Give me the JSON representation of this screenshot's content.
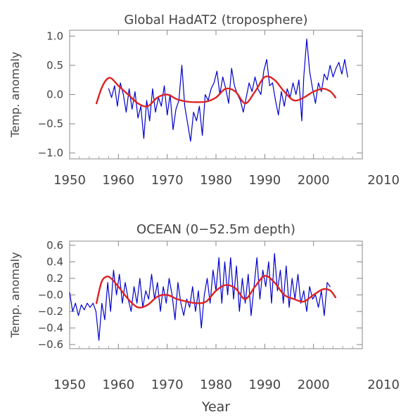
{
  "chart_data": [
    {
      "type": "line",
      "title": "Global HadAT2 (troposphere)",
      "ylabel": "Temp. anomaly",
      "xlabel": "",
      "xlim": [
        1950,
        2010
      ],
      "ylim": [
        -1.1,
        1.1
      ],
      "xticks": [
        1950,
        1960,
        1970,
        1980,
        1990,
        2000,
        2010
      ],
      "yticks": [
        -1.0,
        -0.5,
        0.0,
        0.5,
        1.0
      ],
      "ytick_labels": [
        "−1.0",
        "−0.5",
        "0.0",
        "0.5",
        "1.0"
      ],
      "series": [
        {
          "color": "#0000cc",
          "style": "noisy",
          "x": [
            1958,
            1958.6,
            1959.2,
            1959.8,
            1960.4,
            1961,
            1961.6,
            1962.2,
            1962.8,
            1963.4,
            1964,
            1964.6,
            1965.2,
            1965.8,
            1966.4,
            1967,
            1967.6,
            1968.2,
            1968.8,
            1969.4,
            1970,
            1970.6,
            1971.2,
            1971.8,
            1972.4,
            1973,
            1973.6,
            1974.2,
            1974.8,
            1975.4,
            1976,
            1976.6,
            1977.2,
            1977.8,
            1978.4,
            1979,
            1979.6,
            1980.2,
            1980.8,
            1981.4,
            1982,
            1982.6,
            1983.2,
            1983.8,
            1984.4,
            1985,
            1985.6,
            1986.2,
            1986.8,
            1987.4,
            1988,
            1988.6,
            1989.2,
            1989.8,
            1990.4,
            1991,
            1991.6,
            1992.2,
            1992.8,
            1993.4,
            1994,
            1994.6,
            1995.2,
            1995.8,
            1996.4,
            1997,
            1997.6,
            1998,
            1998.6,
            1999.2,
            1999.8,
            2000.4,
            2001,
            2001.6,
            2002.2,
            2002.8,
            2003.4,
            2004,
            2004.6,
            2005.2,
            2005.8,
            2006.4,
            2007
          ],
          "y": [
            0.1,
            -0.05,
            0.15,
            -0.2,
            0.2,
            0.0,
            -0.3,
            0.1,
            -0.25,
            0.05,
            -0.4,
            -0.2,
            -0.75,
            -0.1,
            -0.45,
            0.1,
            -0.3,
            -0.05,
            -0.2,
            0.15,
            -0.35,
            0.0,
            -0.6,
            -0.25,
            -0.1,
            0.5,
            -0.2,
            -0.5,
            -0.8,
            -0.3,
            -0.45,
            -0.2,
            -0.7,
            0.0,
            -0.1,
            0.1,
            0.2,
            0.4,
            0.0,
            0.3,
            0.1,
            -0.15,
            0.45,
            0.15,
            0.0,
            -0.1,
            -0.3,
            -0.05,
            0.2,
            0.05,
            0.3,
            0.1,
            0.0,
            0.4,
            0.6,
            0.15,
            0.2,
            -0.1,
            -0.35,
            0.05,
            -0.2,
            0.1,
            -0.05,
            0.2,
            0.0,
            0.25,
            -0.45,
            0.3,
            0.95,
            0.4,
            0.1,
            -0.15,
            0.2,
            0.05,
            0.35,
            0.25,
            0.5,
            0.3,
            0.45,
            0.55,
            0.35,
            0.6,
            0.3
          ]
        },
        {
          "color": "#dd2222",
          "style": "smooth",
          "x": [
            1955.5,
            1956.5,
            1957.5,
            1958.5,
            1960,
            1962,
            1964,
            1966,
            1968,
            1970,
            1972,
            1974,
            1976,
            1978,
            1980,
            1982,
            1984,
            1986,
            1988,
            1990,
            1992,
            1994,
            1996,
            1998,
            2000,
            2002,
            2003.5,
            2004.5
          ],
          "y": [
            -0.15,
            0.1,
            0.25,
            0.28,
            0.15,
            0.0,
            -0.15,
            -0.2,
            -0.05,
            0.0,
            -0.08,
            -0.12,
            -0.13,
            -0.12,
            -0.05,
            0.1,
            0.05,
            -0.15,
            0.05,
            0.3,
            0.25,
            0.05,
            -0.1,
            -0.05,
            0.05,
            0.1,
            0.05,
            -0.05
          ]
        }
      ]
    },
    {
      "type": "line",
      "title": "OCEAN (0−52.5m depth)",
      "ylabel": "Temp. anomaly",
      "xlabel": "Year",
      "xlim": [
        1950,
        2010
      ],
      "ylim": [
        -0.65,
        0.65
      ],
      "xticks": [
        1950,
        1960,
        1970,
        1980,
        1990,
        2000,
        2010
      ],
      "yticks": [
        -0.6,
        -0.4,
        -0.2,
        0.0,
        0.2,
        0.4,
        0.6
      ],
      "ytick_labels": [
        "−0.6",
        "−0.4",
        "−0.2",
        "−0.0",
        "0.2",
        "0.4",
        "0.6"
      ],
      "series": [
        {
          "color": "#0000cc",
          "style": "noisy",
          "x": [
            1950,
            1950.6,
            1951.2,
            1951.8,
            1952.4,
            1953,
            1953.6,
            1954.2,
            1954.8,
            1955.4,
            1956,
            1956.6,
            1957.2,
            1957.8,
            1958.4,
            1959,
            1959.6,
            1960.2,
            1960.8,
            1961.4,
            1962,
            1962.6,
            1963.2,
            1963.8,
            1964.4,
            1965,
            1965.6,
            1966.2,
            1966.8,
            1967.4,
            1968,
            1968.6,
            1969.2,
            1969.8,
            1970.4,
            1971,
            1971.6,
            1972.2,
            1972.8,
            1973.4,
            1974,
            1974.6,
            1975.2,
            1975.8,
            1976.4,
            1977,
            1977.6,
            1978.2,
            1978.8,
            1979.4,
            1980,
            1980.6,
            1981.2,
            1981.8,
            1982.4,
            1983,
            1983.6,
            1984.2,
            1984.8,
            1985.4,
            1986,
            1986.6,
            1987.2,
            1987.8,
            1988.4,
            1989,
            1989.6,
            1990.2,
            1990.8,
            1991.4,
            1992,
            1992.6,
            1993.2,
            1993.8,
            1994.4,
            1995,
            1995.6,
            1996.2,
            1996.8,
            1997.4,
            1998,
            1998.6,
            1999.2,
            1999.8,
            2000.4,
            2001,
            2001.6,
            2002.2,
            2002.8,
            2003.4
          ],
          "y": [
            0.03,
            -0.2,
            -0.1,
            -0.25,
            -0.12,
            -0.18,
            -0.1,
            -0.15,
            -0.1,
            -0.2,
            -0.55,
            -0.1,
            -0.3,
            0.15,
            -0.2,
            0.3,
            0.0,
            0.25,
            -0.1,
            0.15,
            -0.05,
            -0.2,
            0.1,
            -0.1,
            0.2,
            -0.15,
            0.05,
            -0.05,
            0.25,
            -0.05,
            0.15,
            -0.2,
            0.1,
            -0.1,
            0.2,
            0.0,
            -0.3,
            0.15,
            -0.1,
            -0.25,
            -0.05,
            -0.15,
            0.1,
            -0.2,
            0.05,
            -0.4,
            0.0,
            0.2,
            -0.1,
            0.3,
            0.05,
            0.45,
            -0.1,
            0.4,
            0.0,
            0.45,
            -0.05,
            0.35,
            -0.2,
            0.2,
            -0.1,
            0.25,
            -0.25,
            0.1,
            0.45,
            -0.05,
            0.3,
            0.1,
            0.4,
            -0.1,
            0.5,
            0.05,
            0.3,
            -0.1,
            0.35,
            -0.15,
            0.2,
            -0.05,
            0.25,
            -0.1,
            0.05,
            -0.2,
            0.1,
            -0.05,
            0.0,
            -0.15,
            0.05,
            -0.25,
            0.15,
            0.1
          ]
        },
        {
          "color": "#dd2222",
          "style": "smooth",
          "x": [
            1955.5,
            1956.5,
            1957.5,
            1958.5,
            1960,
            1962,
            1964,
            1966,
            1968,
            1970,
            1972,
            1974,
            1976,
            1978,
            1980,
            1982,
            1984,
            1986,
            1988,
            1990,
            1992,
            1994,
            1996,
            1998,
            2000,
            2002,
            2003.5,
            2004.5
          ],
          "y": [
            -0.1,
            0.15,
            0.22,
            0.2,
            0.1,
            -0.05,
            -0.15,
            -0.12,
            -0.02,
            0.0,
            -0.05,
            -0.08,
            -0.1,
            -0.08,
            0.05,
            0.12,
            0.08,
            -0.05,
            0.1,
            0.23,
            0.15,
            0.0,
            -0.05,
            -0.08,
            0.0,
            0.07,
            0.05,
            -0.03
          ]
        }
      ]
    }
  ]
}
